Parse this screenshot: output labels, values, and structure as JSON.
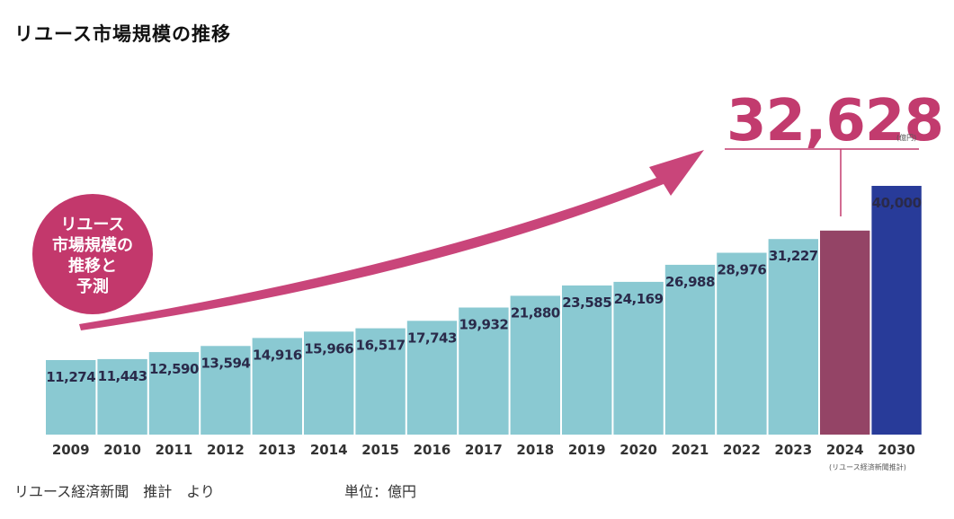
{
  "page": {
    "title": "リユース市場規模の推移",
    "source": "リユース経済新聞　推計　より",
    "unit_label": "単位：億円"
  },
  "chart_data": {
    "type": "bar",
    "title": "リユース市場規模の推移",
    "categories": [
      "2009",
      "2010",
      "2011",
      "2012",
      "2013",
      "2014",
      "2015",
      "2016",
      "2017",
      "2018",
      "2019",
      "2020",
      "2021",
      "2022",
      "2023",
      "2024",
      "2030"
    ],
    "values": [
      11274,
      11443,
      12590,
      13594,
      14916,
      15966,
      16517,
      17743,
      19932,
      21880,
      23585,
      24169,
      26988,
      28976,
      31227,
      32628,
      40000
    ],
    "value_labels": [
      "11,274",
      "11,443",
      "12,590",
      "13,594",
      "14,916",
      "15,966",
      "16,517",
      "17,743",
      "19,932",
      "21,880",
      "23,585",
      "24,169",
      "26,988",
      "28,976",
      "31,227",
      "",
      "40,000"
    ],
    "ylim": [
      0,
      40000
    ],
    "xlabel": "",
    "ylabel": "",
    "unit": "億円",
    "highlight": {
      "category": "2024",
      "value_label": "32,628",
      "unit_label": "(億円)",
      "note": "(リユース経済新聞推計)"
    },
    "badge_lines": [
      "リユース",
      "市場規模の",
      "推移と",
      "予測"
    ],
    "colors": {
      "historical": "#8ac9d2",
      "estimate": "#944466",
      "forecast": "#283b99",
      "arrow": "#c9457a",
      "headline": "#c23b6e",
      "badge": "#c3386c",
      "label_2024": "#a53a66",
      "label_2030": "#2a3f99"
    }
  }
}
